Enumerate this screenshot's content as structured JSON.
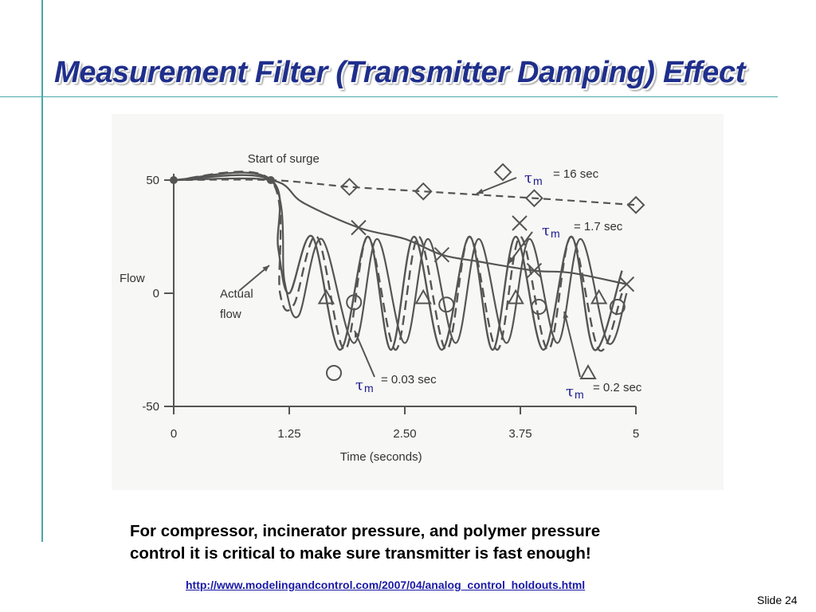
{
  "slide": {
    "title": "Measurement Filter (Transmitter Damping) Effect",
    "body_line1": "For compressor, incinerator pressure, and polymer pressure",
    "body_line2": "control it is critical to make sure transmitter is fast enough!",
    "link": "http://www.modelingandcontrol.com/2007/04/analog_control_holdouts.html",
    "slide_number": "Slide 24",
    "accent_color": "#48a9a6",
    "title_color": "#1f2f8c"
  },
  "chart_data": {
    "type": "line",
    "xlabel": "Time (seconds)",
    "ylabel": "Flow",
    "xlim": [
      0,
      5
    ],
    "ylim": [
      -50,
      50
    ],
    "x_ticks": [
      "0",
      "1.25",
      "2.50",
      "3.75",
      "5"
    ],
    "y_ticks": [
      "50",
      "0",
      "-50"
    ],
    "annotations": {
      "start_of_surge": "Start of surge",
      "actual_flow_line1": "Actual",
      "actual_flow_line2": "flow"
    },
    "tau_symbol": "τ",
    "tau_subscript": "m",
    "series_labels": [
      {
        "marker": "diamond",
        "value": "= 16 sec"
      },
      {
        "marker": "cross",
        "value": "= 1.7 sec"
      },
      {
        "marker": "circle",
        "value": "= 0.03 sec"
      },
      {
        "marker": "triangle",
        "value": "= 0.2 sec"
      }
    ],
    "series": [
      {
        "marker": "none",
        "x": [
          0,
          1.05,
          1.13,
          1.25,
          1.5,
          1.8,
          2.1,
          2.35,
          2.6,
          2.9,
          3.2,
          3.45,
          3.7,
          4.0,
          4.3,
          4.55,
          4.85
        ],
        "y": [
          50,
          50,
          20,
          0,
          25,
          -25,
          25,
          -25,
          25,
          -25,
          25,
          -25,
          25,
          -25,
          25,
          -25,
          10
        ]
      },
      {
        "marker": "diamond",
        "x": [
          0,
          1.05,
          1.9,
          2.7,
          3.9,
          5.0
        ],
        "y": [
          50,
          50,
          47,
          45,
          42,
          39
        ]
      },
      {
        "marker": "cross",
        "x": [
          0,
          1.05,
          1.4,
          2.0,
          2.5,
          2.9,
          3.3,
          3.9,
          4.3,
          4.9
        ],
        "y": [
          50,
          50,
          40,
          29,
          24,
          17,
          14,
          10,
          9,
          4
        ]
      },
      {
        "marker": "circle",
        "x": [
          0,
          1.05,
          1.15,
          1.3,
          1.55,
          1.85,
          2.1,
          2.4,
          2.65,
          2.95,
          3.2,
          3.5,
          3.75,
          4.05,
          4.3,
          4.6,
          4.85
        ],
        "y": [
          50,
          50,
          0,
          -5,
          25,
          -25,
          25,
          -25,
          25,
          -25,
          25,
          -25,
          25,
          -25,
          25,
          -25,
          0
        ]
      },
      {
        "marker": "triangle",
        "x": [
          0,
          1.05,
          1.2,
          1.35,
          1.6,
          1.95,
          2.2,
          2.5,
          2.75,
          3.05,
          3.3,
          3.6,
          3.85,
          4.15,
          4.4,
          4.7,
          4.9
        ],
        "y": [
          50,
          50,
          5,
          -10,
          24,
          -22,
          24,
          -22,
          24,
          -22,
          24,
          -22,
          24,
          -22,
          24,
          -22,
          0
        ]
      }
    ]
  }
}
